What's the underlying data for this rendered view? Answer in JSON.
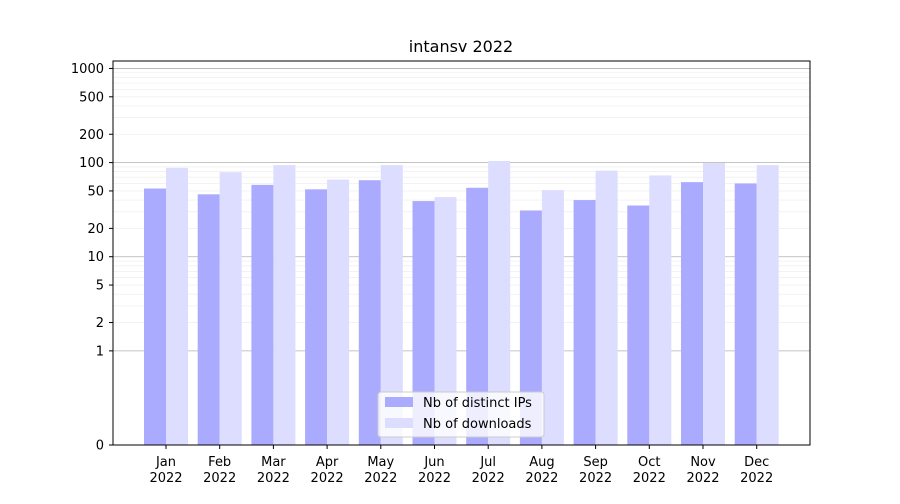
{
  "chart_data": {
    "type": "bar",
    "title": "intansv 2022",
    "xlabel": "",
    "ylabel": "",
    "scale": "symlog",
    "ylim": [
      0,
      1200
    ],
    "yticks": [
      0,
      1,
      2,
      5,
      10,
      20,
      50,
      100,
      200,
      500,
      1000
    ],
    "ytick_labels": [
      "0",
      "1",
      "2",
      "5",
      "10",
      "20",
      "50",
      "100",
      "200",
      "500",
      "1000"
    ],
    "categories": [
      [
        "Jan",
        "2022"
      ],
      [
        "Feb",
        "2022"
      ],
      [
        "Mar",
        "2022"
      ],
      [
        "Apr",
        "2022"
      ],
      [
        "May",
        "2022"
      ],
      [
        "Jun",
        "2022"
      ],
      [
        "Jul",
        "2022"
      ],
      [
        "Aug",
        "2022"
      ],
      [
        "Sep",
        "2022"
      ],
      [
        "Oct",
        "2022"
      ],
      [
        "Nov",
        "2022"
      ],
      [
        "Dec",
        "2022"
      ]
    ],
    "series": [
      {
        "name": "Nb of distinct IPs",
        "color": "#aaaaff",
        "values": [
          53,
          46,
          58,
          52,
          65,
          39,
          54,
          31,
          40,
          35,
          62,
          60
        ]
      },
      {
        "name": "Nb of downloads",
        "color": "#ddddff",
        "values": [
          88,
          79,
          94,
          66,
          94,
          43,
          104,
          51,
          82,
          73,
          99,
          94
        ]
      }
    ],
    "grid": true,
    "legend_position": "bottom-center"
  }
}
